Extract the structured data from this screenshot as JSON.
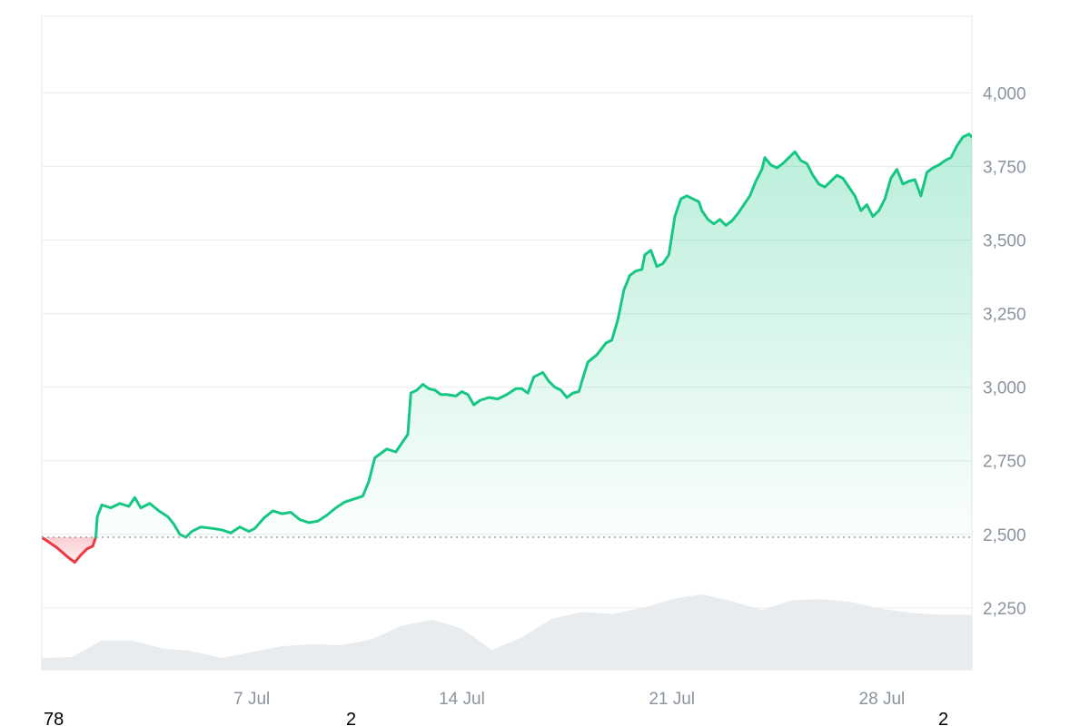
{
  "chart_data": {
    "type": "area",
    "baseline": 2490,
    "ylim": [
      2040,
      4260
    ],
    "y_ticks": [
      2250,
      2500,
      2750,
      3000,
      3250,
      3500,
      3750,
      4000
    ],
    "y_tick_labels": [
      "2,250",
      "2,500",
      "2,750",
      "3,000",
      "3,250",
      "3,500",
      "3,750",
      "4,000"
    ],
    "x_ticks": [
      {
        "day": 7,
        "label": "7 Jul"
      },
      {
        "day": 14,
        "label": "14 Jul"
      },
      {
        "day": 21,
        "label": "21 Jul"
      },
      {
        "day": 28,
        "label": "28 Jul"
      }
    ],
    "xlim": [
      0.0,
      31.0
    ],
    "price_series": [
      [
        0.0,
        2490
      ],
      [
        0.5,
        2455
      ],
      [
        0.9,
        2420
      ],
      [
        1.1,
        2405
      ],
      [
        1.3,
        2430
      ],
      [
        1.5,
        2450
      ],
      [
        1.7,
        2460
      ],
      [
        1.8,
        2490
      ],
      [
        1.85,
        2560
      ],
      [
        2.0,
        2600
      ],
      [
        2.3,
        2590
      ],
      [
        2.6,
        2605
      ],
      [
        2.9,
        2595
      ],
      [
        3.1,
        2625
      ],
      [
        3.3,
        2590
      ],
      [
        3.6,
        2605
      ],
      [
        3.9,
        2580
      ],
      [
        4.2,
        2560
      ],
      [
        4.4,
        2535
      ],
      [
        4.6,
        2500
      ],
      [
        4.8,
        2490
      ],
      [
        5.0,
        2510
      ],
      [
        5.3,
        2525
      ],
      [
        5.7,
        2520
      ],
      [
        6.0,
        2515
      ],
      [
        6.3,
        2505
      ],
      [
        6.6,
        2525
      ],
      [
        6.9,
        2510
      ],
      [
        7.1,
        2520
      ],
      [
        7.4,
        2555
      ],
      [
        7.7,
        2580
      ],
      [
        8.0,
        2570
      ],
      [
        8.3,
        2575
      ],
      [
        8.6,
        2550
      ],
      [
        8.9,
        2540
      ],
      [
        9.2,
        2545
      ],
      [
        9.5,
        2565
      ],
      [
        9.8,
        2590
      ],
      [
        10.1,
        2610
      ],
      [
        10.4,
        2620
      ],
      [
        10.7,
        2630
      ],
      [
        10.9,
        2680
      ],
      [
        11.1,
        2760
      ],
      [
        11.3,
        2775
      ],
      [
        11.5,
        2790
      ],
      [
        11.8,
        2780
      ],
      [
        12.0,
        2810
      ],
      [
        12.2,
        2840
      ],
      [
        12.3,
        2980
      ],
      [
        12.5,
        2990
      ],
      [
        12.7,
        3010
      ],
      [
        12.9,
        2995
      ],
      [
        13.1,
        2990
      ],
      [
        13.3,
        2975
      ],
      [
        13.5,
        2975
      ],
      [
        13.8,
        2970
      ],
      [
        14.0,
        2985
      ],
      [
        14.2,
        2975
      ],
      [
        14.4,
        2940
      ],
      [
        14.6,
        2955
      ],
      [
        14.9,
        2965
      ],
      [
        15.2,
        2960
      ],
      [
        15.5,
        2975
      ],
      [
        15.8,
        2995
      ],
      [
        16.0,
        2995
      ],
      [
        16.2,
        2980
      ],
      [
        16.4,
        3035
      ],
      [
        16.7,
        3050
      ],
      [
        16.9,
        3020
      ],
      [
        17.1,
        3000
      ],
      [
        17.3,
        2990
      ],
      [
        17.5,
        2965
      ],
      [
        17.7,
        2980
      ],
      [
        17.9,
        2985
      ],
      [
        18.0,
        3020
      ],
      [
        18.2,
        3085
      ],
      [
        18.5,
        3110
      ],
      [
        18.8,
        3150
      ],
      [
        19.0,
        3160
      ],
      [
        19.2,
        3230
      ],
      [
        19.4,
        3330
      ],
      [
        19.6,
        3380
      ],
      [
        19.8,
        3395
      ],
      [
        20.0,
        3400
      ],
      [
        20.1,
        3450
      ],
      [
        20.3,
        3465
      ],
      [
        20.5,
        3410
      ],
      [
        20.7,
        3420
      ],
      [
        20.9,
        3450
      ],
      [
        21.1,
        3580
      ],
      [
        21.3,
        3640
      ],
      [
        21.5,
        3650
      ],
      [
        21.7,
        3640
      ],
      [
        21.9,
        3630
      ],
      [
        22.0,
        3600
      ],
      [
        22.2,
        3570
      ],
      [
        22.4,
        3555
      ],
      [
        22.6,
        3570
      ],
      [
        22.8,
        3550
      ],
      [
        23.0,
        3565
      ],
      [
        23.2,
        3590
      ],
      [
        23.4,
        3620
      ],
      [
        23.6,
        3650
      ],
      [
        23.8,
        3700
      ],
      [
        24.0,
        3740
      ],
      [
        24.1,
        3780
      ],
      [
        24.3,
        3755
      ],
      [
        24.5,
        3745
      ],
      [
        24.7,
        3760
      ],
      [
        24.9,
        3780
      ],
      [
        25.1,
        3800
      ],
      [
        25.3,
        3770
      ],
      [
        25.5,
        3760
      ],
      [
        25.7,
        3720
      ],
      [
        25.9,
        3690
      ],
      [
        26.1,
        3680
      ],
      [
        26.3,
        3700
      ],
      [
        26.5,
        3720
      ],
      [
        26.7,
        3710
      ],
      [
        26.9,
        3680
      ],
      [
        27.1,
        3650
      ],
      [
        27.3,
        3600
      ],
      [
        27.5,
        3620
      ],
      [
        27.7,
        3580
      ],
      [
        27.9,
        3600
      ],
      [
        28.1,
        3640
      ],
      [
        28.3,
        3710
      ],
      [
        28.5,
        3740
      ],
      [
        28.7,
        3690
      ],
      [
        28.9,
        3700
      ],
      [
        29.1,
        3705
      ],
      [
        29.3,
        3650
      ],
      [
        29.5,
        3730
      ],
      [
        29.7,
        3745
      ],
      [
        29.9,
        3755
      ],
      [
        30.1,
        3770
      ],
      [
        30.3,
        3780
      ],
      [
        30.5,
        3820
      ],
      [
        30.7,
        3850
      ],
      [
        30.9,
        3860
      ],
      [
        31.0,
        3850
      ]
    ],
    "volume_series": [
      [
        0.0,
        0.12
      ],
      [
        1.0,
        0.13
      ],
      [
        2.0,
        0.3
      ],
      [
        3.0,
        0.3
      ],
      [
        4.0,
        0.22
      ],
      [
        5.0,
        0.19
      ],
      [
        6.0,
        0.12
      ],
      [
        7.0,
        0.18
      ],
      [
        8.0,
        0.24
      ],
      [
        9.0,
        0.26
      ],
      [
        10.0,
        0.25
      ],
      [
        11.0,
        0.31
      ],
      [
        12.0,
        0.45
      ],
      [
        13.0,
        0.51
      ],
      [
        14.0,
        0.42
      ],
      [
        15.0,
        0.2
      ],
      [
        16.0,
        0.33
      ],
      [
        17.0,
        0.52
      ],
      [
        18.0,
        0.59
      ],
      [
        19.0,
        0.57
      ],
      [
        20.0,
        0.63
      ],
      [
        21.0,
        0.72
      ],
      [
        22.0,
        0.77
      ],
      [
        23.0,
        0.7
      ],
      [
        24.0,
        0.61
      ],
      [
        25.0,
        0.71
      ],
      [
        26.0,
        0.72
      ],
      [
        27.0,
        0.69
      ],
      [
        28.0,
        0.62
      ],
      [
        29.0,
        0.58
      ],
      [
        30.0,
        0.56
      ],
      [
        31.0,
        0.56
      ]
    ]
  },
  "corner_labels": {
    "left": "78",
    "middle": "2",
    "right": "2"
  },
  "colors": {
    "up_line": "#16c784",
    "down_line": "#ea3943",
    "up_fill": "#16c784",
    "down_fill": "#ea3943",
    "volume_fill": "#e8ecef",
    "grid": "#eaecef",
    "axis_text": "#8a93a0"
  }
}
